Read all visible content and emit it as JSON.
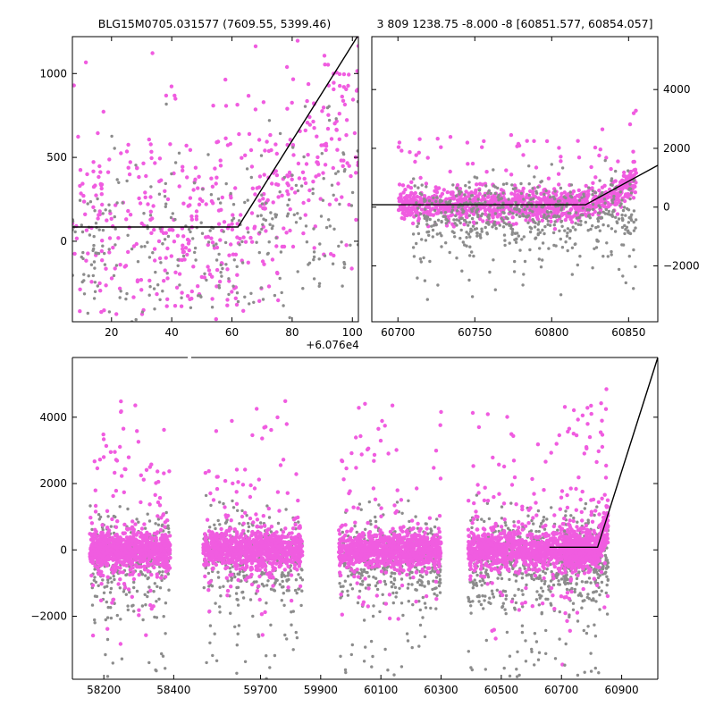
{
  "colors": {
    "magenta": "#f05ce0",
    "gray": "#8c8c8c",
    "model_line": "#000000"
  },
  "chart_data": [
    {
      "id": "top-left",
      "type": "scatter",
      "title": "BLG15M0705.031577 (7609.55, 5399.46)",
      "x_offset_label": "+6.076e4",
      "xlim": [
        7,
        102
      ],
      "ylim": [
        -480,
        1220
      ],
      "xticks": [
        20,
        40,
        60,
        80,
        100
      ],
      "xtick_labels": [
        "20",
        "40",
        "60",
        "80",
        "100"
      ],
      "yticks": [
        0,
        500,
        1000
      ],
      "ytick_labels": [
        "0",
        "500",
        "1000"
      ],
      "ytick_side": "left",
      "model_line": [
        [
          7,
          85
        ],
        [
          62,
          85
        ],
        [
          102,
          1230
        ]
      ],
      "series": [
        {
          "name": "magenta",
          "seed": 11,
          "n": 520,
          "x_range": [
            7,
            102
          ],
          "center": 80,
          "spread": 330,
          "trend": [
            [
              7,
              80
            ],
            [
              60,
              90
            ],
            [
              75,
              230
            ],
            [
              90,
              620
            ],
            [
              102,
              800
            ]
          ]
        },
        {
          "name": "gray",
          "seed": 23,
          "n": 330,
          "x_range": [
            7,
            102
          ],
          "center": -60,
          "spread": 280,
          "trend": [
            [
              7,
              -60
            ],
            [
              60,
              -60
            ],
            [
              80,
              60
            ],
            [
              102,
              200
            ]
          ]
        }
      ]
    },
    {
      "id": "top-right",
      "type": "scatter",
      "title": "3 809 1238.75 -8.000 -8 [60851.577, 60854.057]",
      "xlim": [
        60683,
        60869
      ],
      "ylim": [
        -3900,
        5800
      ],
      "xticks": [
        60700,
        60750,
        60800,
        60850
      ],
      "xtick_labels": [
        "60700",
        "60750",
        "60800",
        "60850"
      ],
      "yticks": [
        -2000,
        0,
        2000,
        4000
      ],
      "ytick_labels": [
        "−2000",
        "0",
        "2000",
        "4000"
      ],
      "ytick_side": "right",
      "model_line": [
        [
          60683,
          80
        ],
        [
          60822,
          80
        ],
        [
          60869,
          1420
        ]
      ],
      "series": [
        {
          "name": "magenta",
          "seed": 37,
          "n": 1100,
          "x_range": [
            60700,
            60855
          ],
          "center": 80,
          "spread": 260,
          "trend": [
            [
              60700,
              60
            ],
            [
              60820,
              90
            ],
            [
              60840,
              350
            ],
            [
              60855,
              900
            ]
          ]
        },
        {
          "name": "gray",
          "seed": 41,
          "n": 560,
          "x_range": [
            60710,
            60855
          ],
          "center": -400,
          "spread": 650,
          "trend": [
            [
              60710,
              -350
            ],
            [
              60855,
              -250
            ]
          ]
        }
      ]
    },
    {
      "id": "bottom",
      "type": "scatter",
      "title": "",
      "xlim": [
        58110,
        61020
      ],
      "ylim": [
        -3900,
        5800
      ],
      "xticks": [
        58200,
        58400,
        59700,
        59900,
        60100,
        60300,
        60500,
        60700,
        60900
      ],
      "xtick_labels": [
        "58200",
        "58400",
        "59700",
        "59900",
        "60100",
        "60300",
        "60500",
        "60700",
        "60900"
      ],
      "yticks": [
        -2000,
        0,
        2000,
        4000
      ],
      "ytick_labels": [
        "−2000",
        "0",
        "2000",
        "4000"
      ],
      "ytick_side": "left",
      "model_line": [
        [
          60660,
          80
        ],
        [
          60820,
          80
        ],
        [
          61020,
          5800
        ]
      ],
      "seasons": [
        {
          "x_range": [
            58160,
            58390
          ],
          "n_magenta": 900,
          "n_gray": 350
        },
        {
          "x_range": [
            59510,
            59840
          ],
          "n_magenta": 950,
          "n_gray": 380
        },
        {
          "x_range": [
            59960,
            60300
          ],
          "n_magenta": 950,
          "n_gray": 420
        },
        {
          "x_range": [
            60390,
            60720
          ],
          "n_magenta": 900,
          "n_gray": 420
        },
        {
          "x_range": [
            60710,
            60855
          ],
          "n_magenta": 700,
          "n_gray": 260
        }
      ],
      "axis_break_pixels_note": "broken axis between 58440 and 59470 (drawn as a gap in the top spine)"
    }
  ]
}
